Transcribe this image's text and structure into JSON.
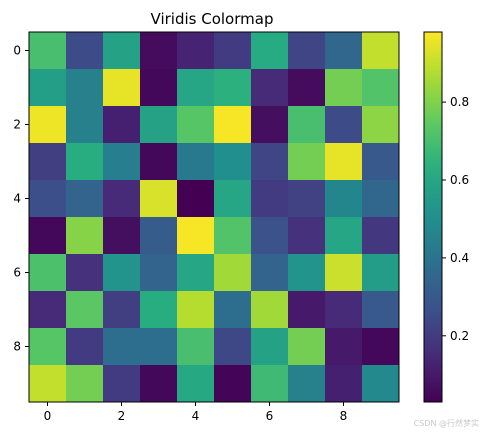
{
  "chart_data": {
    "type": "heatmap",
    "title": "Viridis Colormap",
    "colormap": "viridis",
    "rows": 10,
    "cols": 10,
    "x_ticks": [
      "0",
      "2",
      "4",
      "6",
      "8"
    ],
    "y_ticks": [
      "0",
      "2",
      "4",
      "6",
      "8"
    ],
    "colorbar": {
      "range": [
        0.03,
        0.98
      ],
      "ticks": [
        "0.2",
        "0.4",
        "0.6",
        "0.8"
      ],
      "tick_values": [
        0.2,
        0.4,
        0.6,
        0.8
      ]
    },
    "values": [
      [
        0.7,
        0.25,
        0.58,
        0.06,
        0.13,
        0.2,
        0.62,
        0.23,
        0.35,
        0.9
      ],
      [
        0.57,
        0.45,
        0.95,
        0.05,
        0.6,
        0.64,
        0.15,
        0.06,
        0.78,
        0.72
      ],
      [
        0.96,
        0.45,
        0.12,
        0.58,
        0.73,
        0.97,
        0.07,
        0.7,
        0.25,
        0.82
      ],
      [
        0.21,
        0.63,
        0.44,
        0.05,
        0.42,
        0.5,
        0.23,
        0.78,
        0.95,
        0.3
      ],
      [
        0.26,
        0.34,
        0.15,
        0.93,
        0.03,
        0.6,
        0.2,
        0.22,
        0.47,
        0.35
      ],
      [
        0.05,
        0.81,
        0.07,
        0.31,
        0.97,
        0.72,
        0.27,
        0.17,
        0.6,
        0.19
      ],
      [
        0.71,
        0.17,
        0.52,
        0.34,
        0.6,
        0.85,
        0.34,
        0.52,
        0.91,
        0.56
      ],
      [
        0.15,
        0.74,
        0.21,
        0.63,
        0.88,
        0.38,
        0.85,
        0.1,
        0.15,
        0.3
      ],
      [
        0.73,
        0.2,
        0.38,
        0.38,
        0.7,
        0.24,
        0.58,
        0.78,
        0.1,
        0.05
      ],
      [
        0.9,
        0.78,
        0.2,
        0.05,
        0.61,
        0.04,
        0.68,
        0.45,
        0.12,
        0.48
      ]
    ]
  },
  "watermark": "CSDN @行然梦实"
}
